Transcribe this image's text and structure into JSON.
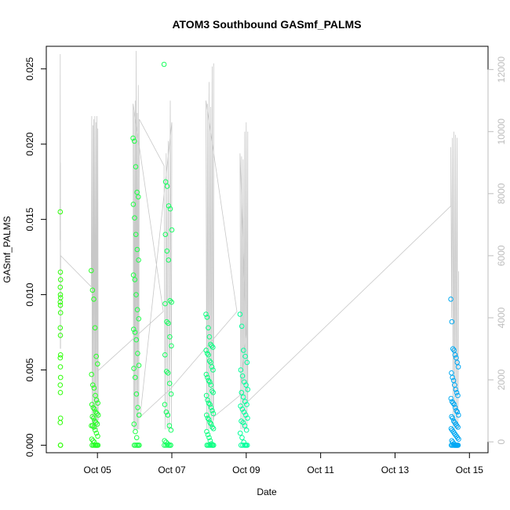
{
  "chart_data": {
    "type": "scatter",
    "title": "ATOM3 Southbound GASmf_PALMS",
    "xlabel": "Date",
    "ylabel": "GASmf_PALMS",
    "x_range": [
      "2017-10-03T15:00",
      "2017-10-15T12:00"
    ],
    "ylim": [
      -0.0005,
      0.0265
    ],
    "y2lim": [
      -350,
      12750
    ],
    "x_ticks": [
      {
        "date": "2017-10-05",
        "label": "Oct 05"
      },
      {
        "date": "2017-10-07",
        "label": "Oct 07"
      },
      {
        "date": "2017-10-09",
        "label": "Oct 09"
      },
      {
        "date": "2017-10-11",
        "label": "Oct 11"
      },
      {
        "date": "2017-10-13",
        "label": "Oct 13"
      },
      {
        "date": "2017-10-15",
        "label": "Oct 15"
      }
    ],
    "y_ticks": [
      {
        "value": 0.0,
        "label": "0.000"
      },
      {
        "value": 0.005,
        "label": "0.005"
      },
      {
        "value": 0.01,
        "label": "0.010"
      },
      {
        "value": 0.015,
        "label": "0.015"
      },
      {
        "value": 0.02,
        "label": "0.020"
      },
      {
        "value": 0.025,
        "label": "0.025"
      }
    ],
    "y2_ticks": [
      {
        "value": 0,
        "label": "0"
      },
      {
        "value": 2000,
        "label": "2000"
      },
      {
        "value": 4000,
        "label": "4000"
      },
      {
        "value": 6000,
        "label": "6000"
      },
      {
        "value": 8000,
        "label": "8000"
      },
      {
        "value": 10000,
        "label": "10000"
      },
      {
        "value": 12000,
        "label": "12000"
      }
    ],
    "secondary_line_color": "#c8c8c8",
    "point_colors": {
      "start": "#33ff00",
      "mid": "#00ffb0",
      "end": "#0099ff"
    },
    "grid": false,
    "flights": [
      {
        "start": "2017-10-04T00:00",
        "end": "2017-10-04T00:20",
        "values": [
          0.0155,
          0.0115,
          0.011,
          0.0105,
          0.01,
          0.0098,
          0.0095,
          0.0093,
          0.0088,
          0.0078,
          0.0073,
          0.006,
          0.0058,
          0.0052,
          0.0045,
          0.004,
          0.0035,
          0.0018,
          0.0015,
          0.0,
          0.0
        ]
      },
      {
        "start": "2017-10-04T20:00",
        "end": "2017-10-05T00:30",
        "values": [
          0.0116,
          0.0103,
          0.0097,
          0.0078,
          0.0059,
          0.0054,
          0.0047,
          0.004,
          0.0038,
          0.0033,
          0.003,
          0.0028,
          0.0027,
          0.0025,
          0.0024,
          0.0022,
          0.0021,
          0.002,
          0.0019,
          0.0018,
          0.0016,
          0.0015,
          0.0014,
          0.0013,
          0.0013,
          0.0012,
          0.001,
          0.0008,
          0.0006,
          0.0004,
          0.0003,
          0.0002,
          0.0,
          0.0,
          0.0,
          0.0,
          0.0,
          0.0,
          0.0,
          0.0
        ]
      },
      {
        "start": "2017-10-05T23:00",
        "end": "2017-10-06T03:00",
        "values": [
          0.0204,
          0.0202,
          0.0185,
          0.0168,
          0.0165,
          0.016,
          0.0151,
          0.014,
          0.013,
          0.0123,
          0.0113,
          0.011,
          0.01,
          0.009,
          0.0084,
          0.0077,
          0.0075,
          0.007,
          0.0061,
          0.0053,
          0.0051,
          0.0045,
          0.0034,
          0.0025,
          0.002,
          0.0014,
          0.0009,
          0.0005,
          0.0,
          0.0,
          0.0,
          0.0,
          0.0,
          0.0
        ]
      },
      {
        "start": "2017-10-06T19:00",
        "end": "2017-10-06T23:59",
        "values": [
          0.0253,
          0.0175,
          0.0172,
          0.0159,
          0.0157,
          0.0143,
          0.014,
          0.0129,
          0.0123,
          0.0096,
          0.0095,
          0.0094,
          0.0082,
          0.0081,
          0.0072,
          0.0066,
          0.006,
          0.0049,
          0.0048,
          0.0041,
          0.0034,
          0.0027,
          0.0022,
          0.002,
          0.0013,
          0.001,
          0.0003,
          0.0002,
          0.0001,
          0.0,
          0.0,
          0.0,
          0.0,
          0.0,
          0.0,
          0.0
        ]
      },
      {
        "start": "2017-10-07T22:00",
        "end": "2017-10-08T03:00",
        "values": [
          0.0087,
          0.0085,
          0.0078,
          0.0072,
          0.0067,
          0.0066,
          0.0065,
          0.0063,
          0.0061,
          0.006,
          0.0056,
          0.0055,
          0.0052,
          0.005,
          0.0047,
          0.0045,
          0.0043,
          0.0042,
          0.004,
          0.0036,
          0.0035,
          0.0033,
          0.003,
          0.0028,
          0.0027,
          0.0025,
          0.0023,
          0.0021,
          0.002,
          0.0018,
          0.0017,
          0.0015,
          0.0014,
          0.0012,
          0.0011,
          0.0009,
          0.0007,
          0.0005,
          0.0003,
          0.0001,
          0.0,
          0.0,
          0.0,
          0.0,
          0.0,
          0.0,
          0.0,
          0.0
        ]
      },
      {
        "start": "2017-10-08T20:00",
        "end": "2017-10-09T01:00",
        "values": [
          0.0087,
          0.0079,
          0.0063,
          0.0059,
          0.0055,
          0.005,
          0.0046,
          0.0042,
          0.004,
          0.0037,
          0.0035,
          0.0032,
          0.0029,
          0.0027,
          0.0026,
          0.0024,
          0.0022,
          0.002,
          0.0018,
          0.0016,
          0.0015,
          0.0013,
          0.001,
          0.0008,
          0.0005,
          0.0002,
          0.0,
          0.0,
          0.0,
          0.0,
          0.0,
          0.0
        ]
      },
      {
        "start": "2017-10-14T12:00",
        "end": "2017-10-14T17:00",
        "values": [
          0.0097,
          0.0082,
          0.0064,
          0.0063,
          0.006,
          0.0058,
          0.0055,
          0.0052,
          0.0048,
          0.0045,
          0.0043,
          0.004,
          0.0037,
          0.0035,
          0.0033,
          0.0031,
          0.0029,
          0.0028,
          0.0027,
          0.0025,
          0.0023,
          0.0022,
          0.002,
          0.0019,
          0.0018,
          0.0016,
          0.0015,
          0.0014,
          0.0013,
          0.0012,
          0.0011,
          0.001,
          0.0009,
          0.0008,
          0.0007,
          0.0006,
          0.0005,
          0.0004,
          0.0003,
          0.0002,
          0.0001,
          0.0,
          0.0,
          0.0,
          0.0,
          0.0,
          0.0,
          0.0,
          0.0,
          0.0,
          0.0,
          0.0
        ]
      }
    ],
    "altitude_series": {
      "name": "",
      "points": [
        [
          "2017-10-03T23:55",
          6500
        ],
        [
          "2017-10-04T00:00",
          12500
        ],
        [
          "2017-10-04T00:04",
          3000
        ],
        [
          "2017-10-04T00:08",
          9000
        ],
        [
          "2017-10-04T00:12",
          3000
        ],
        [
          "2017-10-04T00:16",
          6000
        ],
        [
          "2017-10-04T20:00",
          5000
        ],
        [
          "2017-10-04T20:20",
          10500
        ],
        [
          "2017-10-04T20:40",
          400
        ],
        [
          "2017-10-04T21:00",
          10200
        ],
        [
          "2017-10-04T21:20",
          400
        ],
        [
          "2017-10-04T21:40",
          10400
        ],
        [
          "2017-10-04T22:00",
          400
        ],
        [
          "2017-10-04T22:20",
          10500
        ],
        [
          "2017-10-04T22:40",
          400
        ],
        [
          "2017-10-04T23:00",
          10300
        ],
        [
          "2017-10-04T23:20",
          400
        ],
        [
          "2017-10-04T23:40",
          10500
        ],
        [
          "2017-10-05T00:00",
          400
        ],
        [
          "2017-10-05T00:15",
          10100
        ],
        [
          "2017-10-05T00:30",
          700
        ],
        [
          "2017-10-05T00:30",
          2300
        ],
        [
          "2017-10-06T18:30",
          4200
        ],
        [
          "2017-10-05T23:00",
          10900
        ],
        [
          "2017-10-05T23:20",
          400
        ],
        [
          "2017-10-05T23:40",
          10700
        ],
        [
          "2017-10-06T00:00",
          400
        ],
        [
          "2017-10-06T00:20",
          11000
        ],
        [
          "2017-10-06T00:40",
          400
        ],
        [
          "2017-10-06T01:00",
          12600
        ],
        [
          "2017-10-06T01:20",
          400
        ],
        [
          "2017-10-06T01:40",
          10600
        ],
        [
          "2017-10-06T02:00",
          400
        ],
        [
          "2017-10-06T02:20",
          11500
        ],
        [
          "2017-10-06T02:40",
          400
        ],
        [
          "2017-10-06T03:00",
          10200
        ],
        [
          "2017-10-06T03:00",
          10400
        ],
        [
          "2017-10-06T19:00",
          8900
        ],
        [
          "2017-10-06T19:00",
          8700
        ],
        [
          "2017-10-06T19:40",
          400
        ],
        [
          "2017-10-06T20:20",
          9300
        ],
        [
          "2017-10-06T21:00",
          400
        ],
        [
          "2017-10-06T21:40",
          9700
        ],
        [
          "2017-10-06T22:20",
          400
        ],
        [
          "2017-10-06T23:00",
          11000
        ],
        [
          "2017-10-06T23:40",
          400
        ],
        [
          "2017-10-06T23:59",
          10300
        ],
        [
          "2017-10-06T03:30",
          800
        ],
        [
          "2017-10-06T23:00",
          1700
        ],
        [
          "2017-10-08T18:00",
          4200
        ],
        [
          "2017-10-07T22:00",
          11000
        ],
        [
          "2017-10-07T22:30",
          400
        ],
        [
          "2017-10-07T23:00",
          10900
        ],
        [
          "2017-10-07T23:30",
          400
        ],
        [
          "2017-10-08T00:00",
          11600
        ],
        [
          "2017-10-08T00:30",
          400
        ],
        [
          "2017-10-08T01:00",
          10800
        ],
        [
          "2017-10-08T01:30",
          400
        ],
        [
          "2017-10-08T02:00",
          12100
        ],
        [
          "2017-10-08T02:30",
          400
        ],
        [
          "2017-10-08T03:00",
          12200
        ],
        [
          "2017-10-08T03:00",
          700
        ],
        [
          "2017-10-08T03:00",
          800
        ],
        [
          "2017-10-08T20:00",
          1500
        ],
        [
          "2017-10-09T00:00",
          3500
        ],
        [
          "2017-10-08T20:00",
          9300
        ],
        [
          "2017-10-08T20:30",
          400
        ],
        [
          "2017-10-08T21:00",
          9200
        ],
        [
          "2017-10-08T21:30",
          400
        ],
        [
          "2017-10-08T22:00",
          9100
        ],
        [
          "2017-10-08T22:30",
          400
        ],
        [
          "2017-10-08T23:00",
          10000
        ],
        [
          "2017-10-08T23:30",
          400
        ],
        [
          "2017-10-09T00:00",
          10300
        ],
        [
          "2017-10-09T00:30",
          400
        ],
        [
          "2017-10-09T01:00",
          10000
        ],
        [
          "2017-10-09T01:00",
          1300
        ],
        [
          "2017-10-14T12:00",
          7600
        ],
        [
          "2017-10-14T12:00",
          9500
        ],
        [
          "2017-10-14T12:30",
          4000
        ],
        [
          "2017-10-14T13:00",
          9800
        ],
        [
          "2017-10-14T13:30",
          400
        ],
        [
          "2017-10-14T14:00",
          10000
        ],
        [
          "2017-10-14T14:30",
          400
        ],
        [
          "2017-10-14T15:00",
          9900
        ],
        [
          "2017-10-14T15:30",
          400
        ],
        [
          "2017-10-14T16:00",
          9800
        ],
        [
          "2017-10-14T16:30",
          400
        ],
        [
          "2017-10-14T17:00",
          5500
        ]
      ]
    }
  }
}
